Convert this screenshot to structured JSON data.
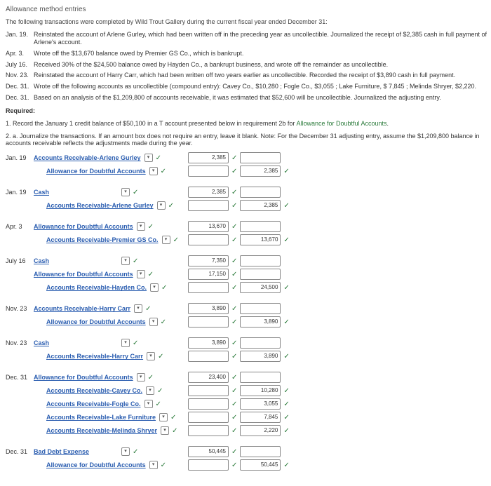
{
  "title": "Allowance method entries",
  "intro": "The following transactions were completed by Wild Trout Gallery during the current fiscal year ended December 31:",
  "transactions": [
    {
      "date": "Jan. 19.",
      "text": "Reinstated the account of Arlene Gurley, which had been written off in the preceding year as uncollectible. Journalized the receipt of $2,385 cash in full payment of Arlene's account."
    },
    {
      "date": "Apr. 3.",
      "text": "Wrote off the $13,670 balance owed by Premier GS Co., which is bankrupt."
    },
    {
      "date": "July 16.",
      "text": "Received 30% of the $24,500 balance owed by Hayden Co., a bankrupt business, and wrote off the remainder as uncollectible."
    },
    {
      "date": "Nov. 23.",
      "text": "Reinstated the account of Harry Carr, which had been written off two years earlier as uncollectible. Recorded the receipt of $3,890 cash in full payment."
    },
    {
      "date": "Dec. 31.",
      "text": "Wrote off the following accounts as uncollectible (compound entry): Cavey Co., $10,280 ; Fogle Co., $3,055 ; Lake Furniture, $ 7,845 ; Melinda Shryer, $2,220."
    },
    {
      "date": "Dec. 31.",
      "text": "Based on an analysis of the $1,209,800 of accounts receivable, it was estimated that $52,600 will be uncollectible. Journalized the adjusting entry."
    }
  ],
  "required": "Required:",
  "req1": "1. Record the January 1 credit balance of $50,100 in a T account presented below in requirement 2b for ",
  "req1link": "Allowance for Doubtful Accounts",
  "req2": "2. a. Journalize the transactions. If an amount box does not require an entry, leave it blank. Note: For the December 31 adjusting entry, assume the $1,209,800 balance in accounts receivable reflects the adjustments made during the year.",
  "entries": [
    {
      "date": "Jan. 19",
      "rows": [
        {
          "acct": "Accounts Receivable-Arlene Gurley",
          "debit": "2,385",
          "credit": "",
          "indent": false
        },
        {
          "acct": "Allowance for Doubtful Accounts",
          "debit": "",
          "credit": "2,385",
          "indent": true
        }
      ]
    },
    {
      "date": "Jan. 19",
      "rows": [
        {
          "acct": "Cash",
          "debit": "2,385",
          "credit": "",
          "indent": false
        },
        {
          "acct": "Accounts Receivable-Arlene Gurley",
          "debit": "",
          "credit": "2,385",
          "indent": true
        }
      ]
    },
    {
      "date": "Apr. 3",
      "rows": [
        {
          "acct": "Allowance for Doubtful Accounts",
          "debit": "13,670",
          "credit": "",
          "indent": false
        },
        {
          "acct": "Accounts Receivable-Premier GS Co.",
          "debit": "",
          "credit": "13,670",
          "indent": true
        }
      ]
    },
    {
      "date": "July 16",
      "rows": [
        {
          "acct": "Cash",
          "debit": "7,350",
          "credit": "",
          "indent": false
        },
        {
          "acct": "Allowance for Doubtful Accounts",
          "debit": "17,150",
          "credit": "",
          "indent": false
        },
        {
          "acct": "Accounts Receivable-Hayden Co.",
          "debit": "",
          "credit": "24,500",
          "indent": true
        }
      ]
    },
    {
      "date": "Nov. 23",
      "rows": [
        {
          "acct": "Accounts Receivable-Harry Carr",
          "debit": "3,890",
          "credit": "",
          "indent": false
        },
        {
          "acct": "Allowance for Doubtful Accounts",
          "debit": "",
          "credit": "3,890",
          "indent": true
        }
      ]
    },
    {
      "date": "Nov. 23",
      "rows": [
        {
          "acct": "Cash",
          "debit": "3,890",
          "credit": "",
          "indent": false
        },
        {
          "acct": "Accounts Receivable-Harry Carr",
          "debit": "",
          "credit": "3,890",
          "indent": true
        }
      ]
    },
    {
      "date": "Dec. 31",
      "rows": [
        {
          "acct": "Allowance for Doubtful Accounts",
          "debit": "23,400",
          "credit": "",
          "indent": false
        },
        {
          "acct": "Accounts Receivable-Cavey Co.",
          "debit": "",
          "credit": "10,280",
          "indent": true
        },
        {
          "acct": "Accounts Receivable-Fogle Co.",
          "debit": "",
          "credit": "3,055",
          "indent": true
        },
        {
          "acct": "Accounts Receivable-Lake Furniture",
          "debit": "",
          "credit": "7,845",
          "indent": true
        },
        {
          "acct": "Accounts Receivable-Melinda Shryer",
          "debit": "",
          "credit": "2,220",
          "indent": true
        }
      ]
    },
    {
      "date": "Dec. 31",
      "rows": [
        {
          "acct": "Bad Debt Expense",
          "debit": "50,445",
          "credit": "",
          "indent": false
        },
        {
          "acct": "Allowance for Doubtful Accounts",
          "debit": "",
          "credit": "50,445",
          "indent": true
        }
      ]
    }
  ]
}
